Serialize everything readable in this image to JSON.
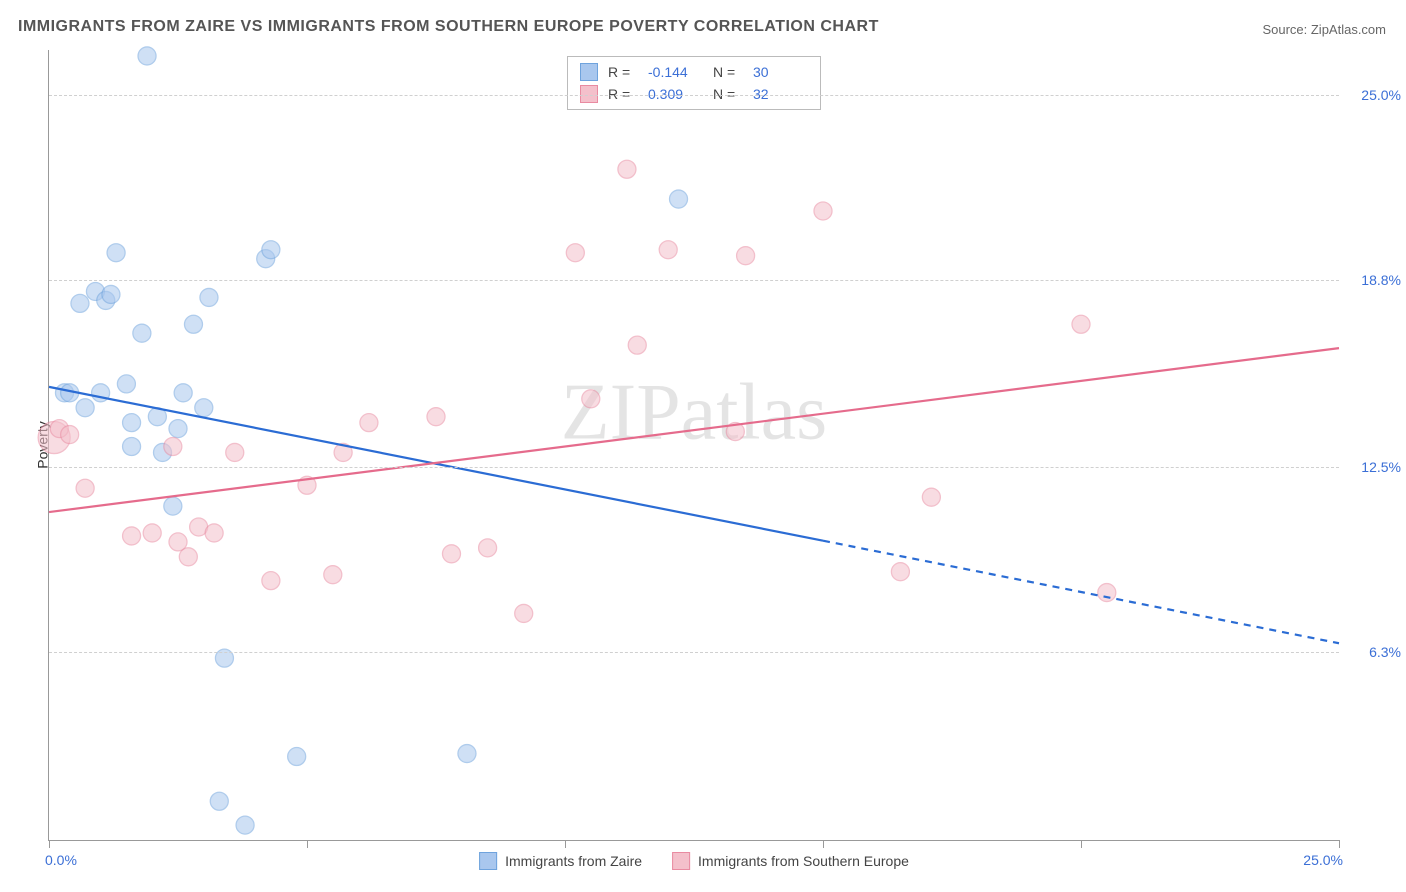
{
  "title": "IMMIGRANTS FROM ZAIRE VS IMMIGRANTS FROM SOUTHERN EUROPE POVERTY CORRELATION CHART",
  "source_label": "Source: ",
  "source_name": "ZipAtlas.com",
  "watermark": "ZIPatlas",
  "yaxis_title": "Poverty",
  "chart": {
    "type": "scatter-correlation",
    "background_color": "#ffffff",
    "grid_color": "#d0d0d0",
    "axis_color": "#999999",
    "label_color": "#3b6fd6",
    "xlim": [
      0,
      25
    ],
    "ylim": [
      0,
      26.5
    ],
    "x_ticks": [
      0,
      5,
      10,
      15,
      20,
      25
    ],
    "x_tick_labels": {
      "0": "0.0%",
      "25": "25.0%"
    },
    "y_gridlines": [
      6.3,
      12.5,
      18.8,
      25.0
    ],
    "y_tick_labels": [
      "6.3%",
      "12.5%",
      "18.8%",
      "25.0%"
    ],
    "marker_radius": 9,
    "marker_opacity": 0.55,
    "line_width": 2.2,
    "series": [
      {
        "key": "zaire",
        "name": "Immigrants from Zaire",
        "color_fill": "#a9c7ee",
        "color_stroke": "#6fa3dd",
        "line_color": "#2b6cd4",
        "R": "-0.144",
        "N": "30",
        "trend": {
          "x1": 0,
          "y1": 15.2,
          "x2": 25,
          "y2": 6.6,
          "solid_until_x": 15
        },
        "points": [
          [
            0.3,
            15.0
          ],
          [
            0.4,
            15.0
          ],
          [
            0.6,
            18.0
          ],
          [
            0.7,
            14.5
          ],
          [
            0.9,
            18.4
          ],
          [
            1.0,
            15.0
          ],
          [
            1.1,
            18.1
          ],
          [
            1.2,
            18.3
          ],
          [
            1.3,
            19.7
          ],
          [
            1.5,
            15.3
          ],
          [
            1.6,
            14.0
          ],
          [
            1.6,
            13.2
          ],
          [
            1.8,
            17.0
          ],
          [
            1.9,
            26.3
          ],
          [
            2.1,
            14.2
          ],
          [
            2.2,
            13.0
          ],
          [
            2.4,
            11.2
          ],
          [
            2.5,
            13.8
          ],
          [
            2.6,
            15.0
          ],
          [
            2.8,
            17.3
          ],
          [
            3.0,
            14.5
          ],
          [
            3.1,
            18.2
          ],
          [
            3.3,
            1.3
          ],
          [
            3.4,
            6.1
          ],
          [
            3.8,
            0.5
          ],
          [
            4.2,
            19.5
          ],
          [
            4.3,
            19.8
          ],
          [
            4.8,
            2.8
          ],
          [
            8.1,
            2.9
          ],
          [
            12.2,
            21.5
          ]
        ]
      },
      {
        "key": "seurope",
        "name": "Immigrants from Southern Europe",
        "color_fill": "#f4c0cb",
        "color_stroke": "#e98ba1",
        "line_color": "#e56b8c",
        "R": "0.309",
        "N": "32",
        "trend": {
          "x1": 0,
          "y1": 11.0,
          "x2": 25,
          "y2": 16.5,
          "solid_until_x": 25
        },
        "points": [
          [
            0.2,
            13.8
          ],
          [
            0.7,
            11.8
          ],
          [
            1.6,
            10.2
          ],
          [
            2.0,
            10.3
          ],
          [
            2.4,
            13.2
          ],
          [
            2.5,
            10.0
          ],
          [
            2.7,
            9.5
          ],
          [
            2.9,
            10.5
          ],
          [
            3.2,
            10.3
          ],
          [
            3.6,
            13.0
          ],
          [
            4.3,
            8.7
          ],
          [
            5.0,
            11.9
          ],
          [
            5.5,
            8.9
          ],
          [
            5.7,
            13.0
          ],
          [
            6.2,
            14.0
          ],
          [
            7.5,
            14.2
          ],
          [
            7.8,
            9.6
          ],
          [
            8.5,
            9.8
          ],
          [
            9.2,
            7.6
          ],
          [
            10.2,
            19.7
          ],
          [
            10.5,
            14.8
          ],
          [
            11.2,
            22.5
          ],
          [
            11.4,
            16.6
          ],
          [
            12.0,
            19.8
          ],
          [
            13.3,
            13.7
          ],
          [
            13.5,
            19.6
          ],
          [
            15.0,
            21.1
          ],
          [
            17.1,
            11.5
          ],
          [
            20.0,
            17.3
          ],
          [
            20.5,
            8.3
          ],
          [
            16.5,
            9.0
          ],
          [
            0.4,
            13.6
          ]
        ],
        "large_points": [
          [
            0.1,
            13.5,
            16
          ]
        ]
      }
    ]
  },
  "legend_top": {
    "r_label": "R =",
    "n_label": "N ="
  }
}
